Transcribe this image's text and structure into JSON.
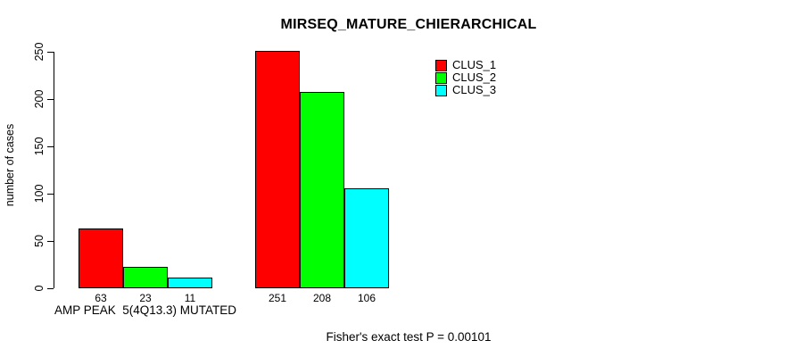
{
  "chart_data": {
    "type": "bar",
    "title": "MIRSEQ_MATURE_CHIERARCHICAL",
    "ylabel": "number of cases",
    "xlabel": "",
    "ylim": [
      0,
      250
    ],
    "yticks": [
      0,
      50,
      100,
      150,
      200,
      250
    ],
    "grid": false,
    "legend_position": "top-right",
    "categories": [
      "AMP PEAK  5(4Q13.3) MUTATED",
      ""
    ],
    "series": [
      {
        "name": "CLUS_1",
        "color": "#FF0000",
        "values": [
          63,
          251
        ]
      },
      {
        "name": "CLUS_2",
        "color": "#00FF00",
        "values": [
          23,
          208
        ]
      },
      {
        "name": "CLUS_3",
        "color": "#00FFFF",
        "values": [
          11,
          106
        ]
      }
    ],
    "bar_value_labels": [
      [
        63,
        23,
        11
      ],
      [
        251,
        208,
        106
      ]
    ],
    "annotation": "Fisher's exact test P = 0.00101"
  }
}
